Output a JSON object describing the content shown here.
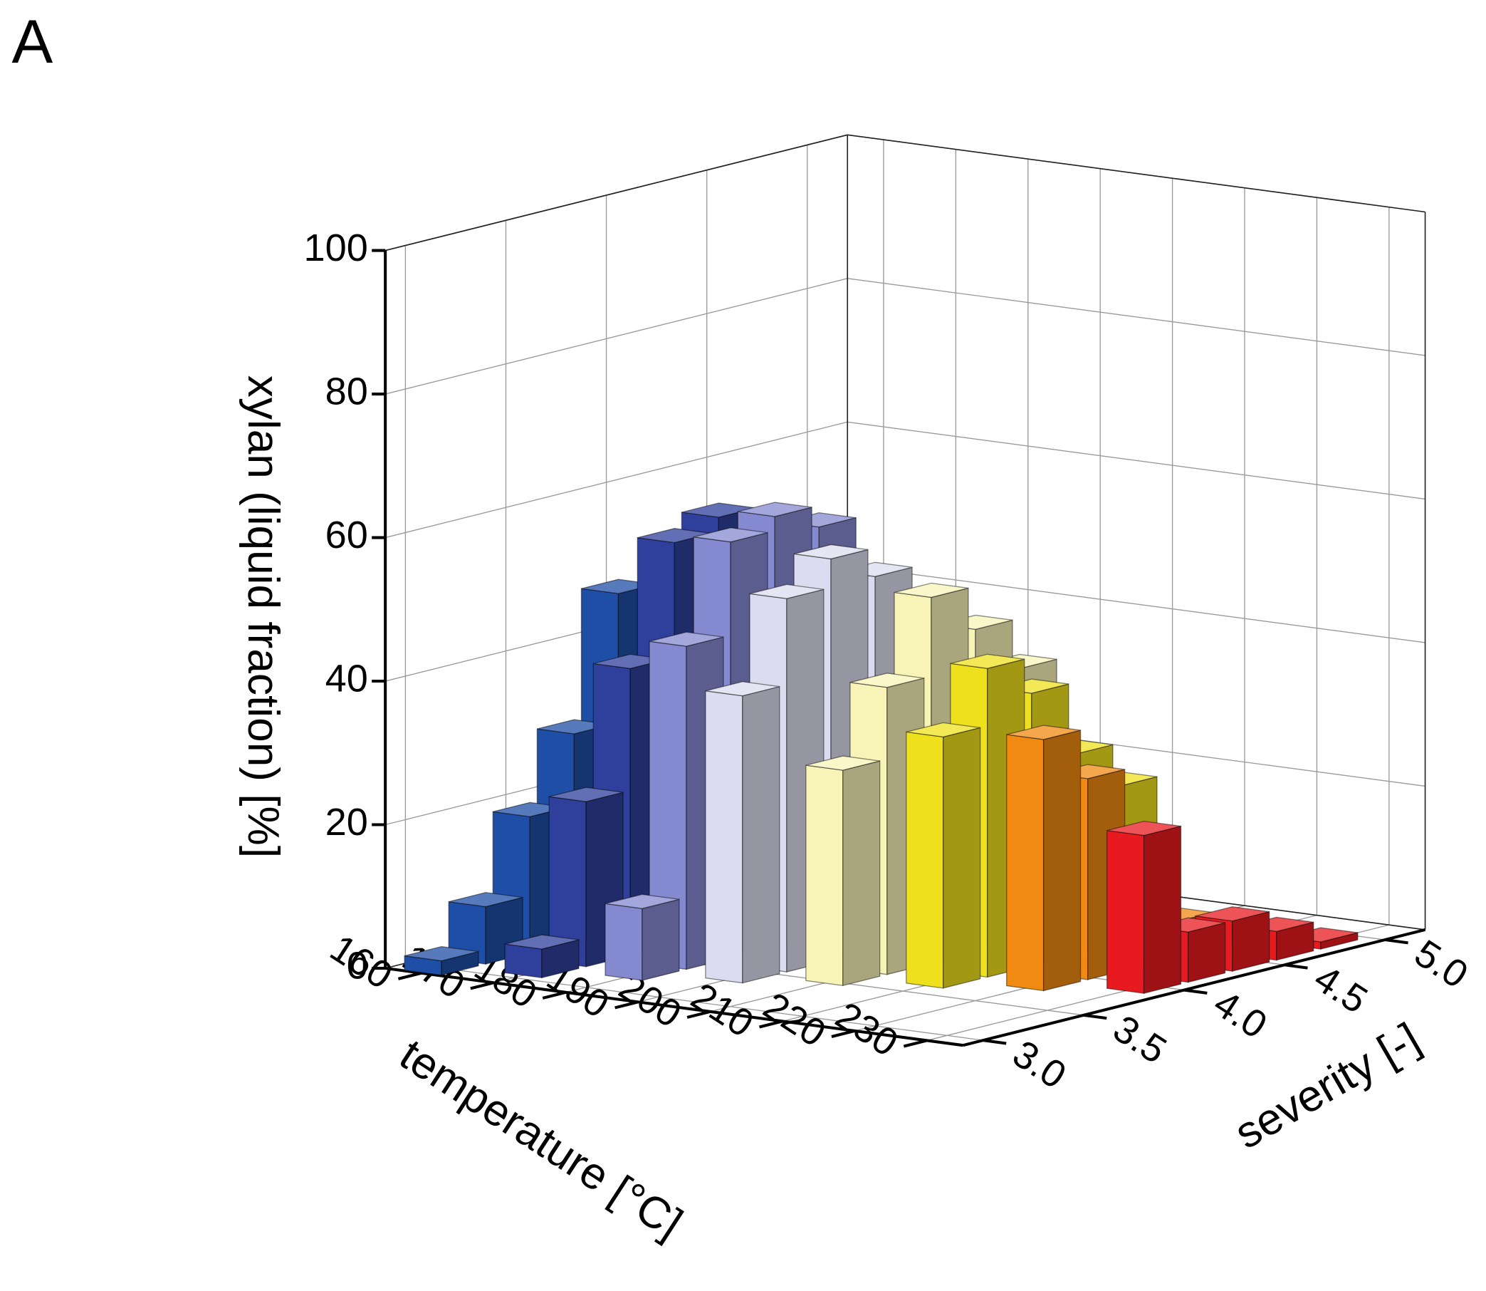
{
  "panel_label": "A",
  "chart_data": {
    "type": "bar3d",
    "x_label": "temperature [°C]",
    "y_label": "severity [-]",
    "z_label": "xylan (liquid fraction) [%]",
    "xlim": [
      155,
      235
    ],
    "xticks": [
      160,
      170,
      180,
      190,
      200,
      210,
      220,
      230
    ],
    "ylim": [
      2.9,
      5.2
    ],
    "yticks": [
      {
        "value": 3,
        "label": "3.0"
      },
      {
        "value": 3.5,
        "label": "3.5"
      },
      {
        "value": 4,
        "label": "4.0"
      },
      {
        "value": 4.5,
        "label": "4.5"
      },
      {
        "value": 5,
        "label": "5.0"
      }
    ],
    "zlim": [
      0,
      100
    ],
    "zticks": [
      0,
      20,
      40,
      60,
      80,
      100
    ],
    "grid": true,
    "series": [
      {
        "temperature": 160,
        "color": "#1f4ea6",
        "severity": [
          3.0,
          3.22,
          3.44,
          3.66,
          3.88
        ],
        "values": [
          2,
          8,
          19,
          29,
          47
        ]
      },
      {
        "temperature": 170,
        "color": "#2f3f9c",
        "severity": [
          3.14,
          3.36,
          3.58,
          3.8,
          4.02
        ],
        "values": [
          4,
          23,
          40,
          56,
          58
        ]
      },
      {
        "temperature": 180,
        "color": "#8589cf",
        "severity": [
          3.28,
          3.5,
          3.72,
          3.94,
          4.16
        ],
        "values": [
          10,
          45,
          58,
          60,
          57
        ]
      },
      {
        "temperature": 190,
        "color": "#dcdcf0",
        "severity": [
          3.42,
          3.64,
          3.86,
          4.08,
          4.3
        ],
        "values": [
          40,
          52,
          56,
          52,
          45
        ]
      },
      {
        "temperature": 200,
        "color": "#f8f4b8",
        "severity": [
          3.56,
          3.78,
          4.0,
          4.22,
          4.44
        ],
        "values": [
          30,
          40,
          51,
          45,
          38
        ]
      },
      {
        "temperature": 210,
        "color": "#efe01e",
        "severity": [
          3.7,
          3.92,
          4.14,
          4.36,
          4.58
        ],
        "values": [
          35,
          43,
          38,
          28,
          22
        ]
      },
      {
        "temperature": 220,
        "color": "#f08a12",
        "severity": [
          3.84,
          4.06,
          4.28,
          4.5,
          4.72
        ],
        "values": [
          35,
          28,
          7,
          5,
          3
        ]
      },
      {
        "temperature": 230,
        "color": "#e81a1f",
        "severity": [
          3.98,
          4.2,
          4.42,
          4.64,
          4.86
        ],
        "values": [
          22,
          7,
          7,
          4,
          1
        ]
      }
    ]
  }
}
